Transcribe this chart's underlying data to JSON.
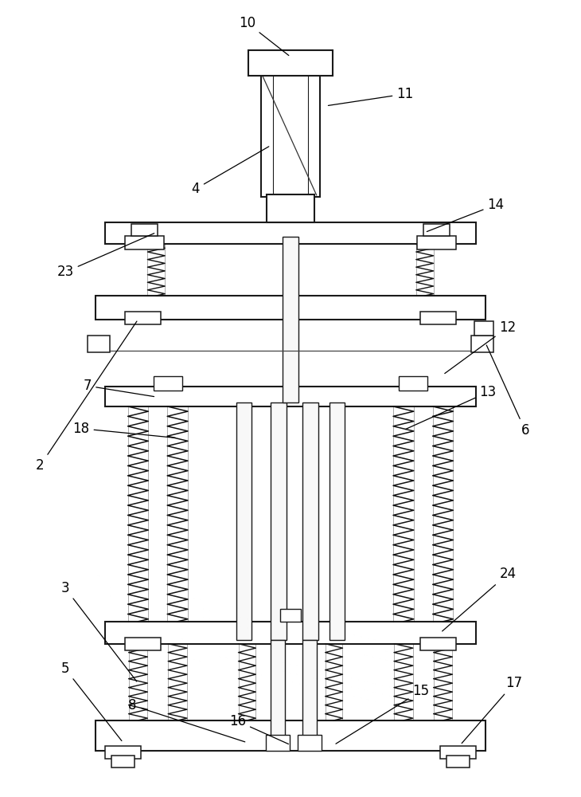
{
  "bg_color": "#ffffff",
  "line_color": "#1a1a1a",
  "fig_width": 7.3,
  "fig_height": 10.0,
  "label_fontsize": 12
}
